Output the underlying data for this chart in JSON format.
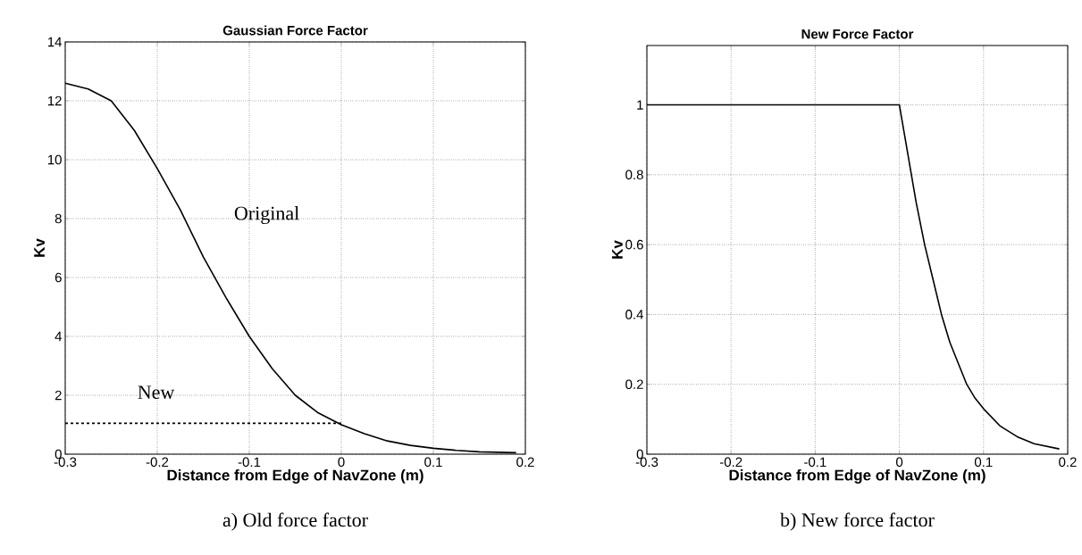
{
  "chart_data": [
    {
      "type": "line",
      "title": "Gaussian Force Factor",
      "xlabel": "Distance from Edge of NavZone (m)",
      "ylabel": "Kv",
      "xlim": [
        -0.3,
        0.2
      ],
      "ylim": [
        0,
        14
      ],
      "xticks": [
        -0.3,
        -0.2,
        -0.1,
        0,
        0.1,
        0.2
      ],
      "yticks": [
        0,
        2,
        4,
        6,
        8,
        10,
        12,
        14
      ],
      "grid": true,
      "series": [
        {
          "color": "#000000",
          "line_style": "solid",
          "x": [
            -0.3,
            -0.275,
            -0.25,
            -0.225,
            -0.2,
            -0.175,
            -0.15,
            -0.125,
            -0.1,
            -0.075,
            -0.05,
            -0.025,
            0,
            0.025,
            0.05,
            0.075,
            0.1,
            0.125,
            0.15,
            0.19
          ],
          "values": [
            12.6,
            12.4,
            12.0,
            11.0,
            9.7,
            8.3,
            6.7,
            5.3,
            4.0,
            2.9,
            2.0,
            1.4,
            1.0,
            0.7,
            0.45,
            0.3,
            0.2,
            0.13,
            0.08,
            0.05
          ]
        },
        {
          "color": "#000000",
          "line_style": "dashed",
          "x": [
            -0.3,
            0
          ],
          "values": [
            1.05,
            1.05
          ]
        }
      ],
      "annotations": [
        "Original",
        "New",
        "a)  Old force factor"
      ]
    },
    {
      "type": "line",
      "title": "New Force Factor",
      "xlabel": "Distance from Edge of NavZone (m)",
      "ylabel": "Kv",
      "xlim": [
        -0.3,
        0.2
      ],
      "ylim": [
        0,
        1.17
      ],
      "xticks": [
        -0.3,
        -0.2,
        -0.1,
        0,
        0.1,
        0.2
      ],
      "yticks": [
        0,
        0.2,
        0.4,
        0.6,
        0.8,
        1
      ],
      "grid": true,
      "series": [
        {
          "color": "#000000",
          "line_style": "solid",
          "x": [
            -0.3,
            0,
            0.01,
            0.02,
            0.03,
            0.04,
            0.05,
            0.06,
            0.07,
            0.08,
            0.09,
            0.1,
            0.12,
            0.14,
            0.16,
            0.19
          ],
          "values": [
            1,
            1,
            0.86,
            0.72,
            0.6,
            0.5,
            0.4,
            0.32,
            0.26,
            0.2,
            0.16,
            0.13,
            0.08,
            0.05,
            0.03,
            0.015
          ]
        }
      ],
      "annotations": [
        "b) New force factor"
      ]
    }
  ]
}
